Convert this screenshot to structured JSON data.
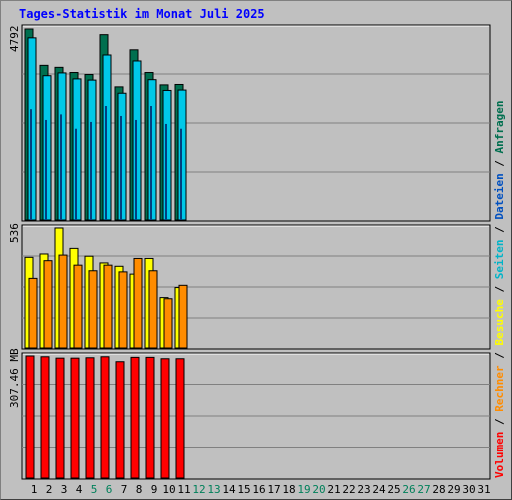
{
  "title": "Tages-Statistik im Monat Juli 2025",
  "colors": {
    "anfragen": "#006f4f",
    "dateien": "#00c8e8",
    "seiten": "#00c8e8",
    "besuche": "#ffff00",
    "rechner": "#ff8c00",
    "volumen": "#ff0000",
    "weekend": "#00805a",
    "weekday": "#000000",
    "grid": "#808080"
  },
  "legend": {
    "volumen": "Volumen",
    "rechner": "Rechner",
    "besuche": "Besuche",
    "seiten": "Seiten",
    "dateien": "Dateien",
    "anfragen": "Anfragen",
    "sep": " / "
  },
  "chart_data": [
    {
      "type": "bar",
      "panel": "top",
      "max_label": "4792",
      "ylim": [
        0,
        4792
      ],
      "grid": true,
      "categories": [
        "1",
        "2",
        "3",
        "4",
        "5",
        "6",
        "7",
        "8",
        "9",
        "10",
        "11"
      ],
      "series": [
        {
          "name": "Anfragen",
          "values": [
            4792,
            3880,
            3830,
            3700,
            3650,
            4650,
            3340,
            4270,
            3700,
            3390,
            3400
          ]
        },
        {
          "name": "Dateien",
          "values": [
            4570,
            3620,
            3690,
            3540,
            3510,
            4140,
            3180,
            3990,
            3520,
            3250,
            3260
          ]
        },
        {
          "name": "Seiten",
          "values": [
            2780,
            2510,
            2650,
            2290,
            2460,
            2860,
            2610,
            2510,
            2860,
            2410,
            2290
          ]
        }
      ]
    },
    {
      "type": "bar",
      "panel": "middle",
      "max_label": "536",
      "ylim": [
        0,
        536
      ],
      "grid": true,
      "categories": [
        "1",
        "2",
        "3",
        "4",
        "5",
        "6",
        "7",
        "8",
        "9",
        "10",
        "11"
      ],
      "series": [
        {
          "name": "Besuche",
          "values": [
            405,
            420,
            536,
            445,
            410,
            380,
            365,
            330,
            400,
            225,
            270
          ]
        },
        {
          "name": "Rechner",
          "values": [
            311,
            390,
            415,
            370,
            345,
            370,
            340,
            400,
            345,
            220,
            280
          ]
        }
      ]
    },
    {
      "type": "bar",
      "panel": "bottom",
      "max_label": "307.46 MB",
      "ylim": [
        0,
        307.46
      ],
      "grid": true,
      "categories": [
        "1",
        "2",
        "3",
        "4",
        "5",
        "6",
        "7",
        "8",
        "9",
        "10",
        "11"
      ],
      "series": [
        {
          "name": "Volumen",
          "values": [
            307.46,
            305.5,
            302.0,
            302.0,
            303.0,
            305.5,
            293.0,
            304.0,
            304.0,
            300.5,
            300.5
          ]
        }
      ]
    }
  ],
  "x_axis": {
    "days": [
      "1",
      "2",
      "3",
      "4",
      "5",
      "6",
      "7",
      "8",
      "9",
      "10",
      "11",
      "12",
      "13",
      "14",
      "15",
      "16",
      "17",
      "18",
      "19",
      "20",
      "21",
      "22",
      "23",
      "24",
      "25",
      "26",
      "27",
      "28",
      "29",
      "30",
      "31"
    ],
    "weekend_days": [
      "5",
      "6",
      "12",
      "13",
      "19",
      "20",
      "26",
      "27"
    ]
  }
}
